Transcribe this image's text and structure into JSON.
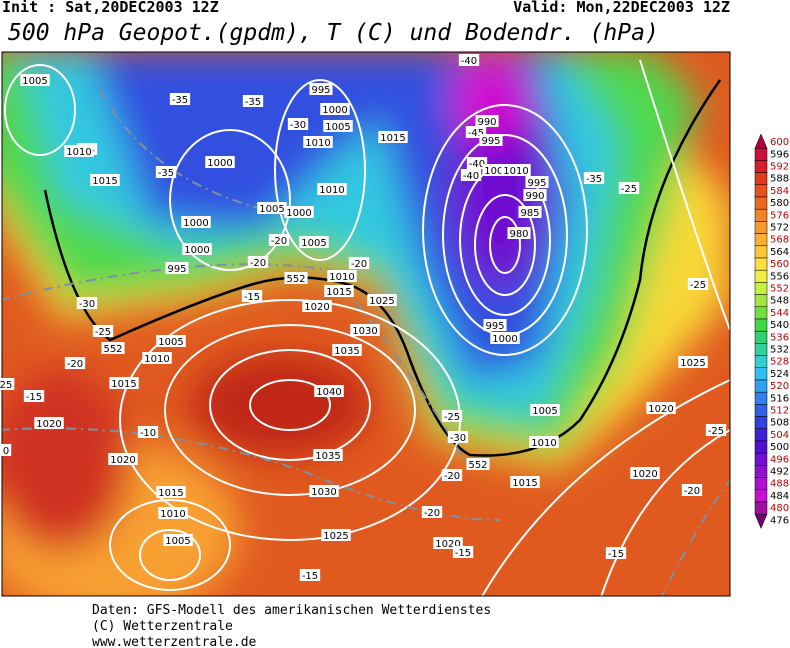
{
  "header": {
    "init": "Init : Sat,20DEC2003 12Z",
    "valid": "Valid: Mon,22DEC2003 12Z",
    "title": "500 hPa Geopot.(gpdm), T (C) und Bodendr. (hPa)"
  },
  "map_labels": [
    "1005",
    "-25",
    "1010",
    "1015",
    "1000",
    "-35",
    "-35",
    "-35",
    "995",
    "1000",
    "-30",
    "1005",
    "1010",
    "1015",
    "-40",
    "990",
    "-45",
    "995",
    "-40",
    "1000",
    "1010",
    "-40",
    "995",
    "-35",
    "-25",
    "990",
    "985",
    "980",
    "1005",
    "1000",
    "1010",
    "1000",
    "-20",
    "1005",
    "1000",
    "-20",
    "995",
    "-20",
    "1010",
    "552",
    "-15",
    "1015",
    "1025",
    "1020",
    "-30",
    "-25",
    "1030",
    "1005",
    "552",
    "1035",
    "1010",
    "-20",
    "1015",
    "-15",
    "25",
    "1040",
    "995",
    "1000",
    "-25",
    "1025",
    "1005",
    "1020",
    "-25",
    "1020",
    "-10",
    "-25",
    "-30",
    "1010",
    "1035",
    "552",
    "1020",
    "0",
    "-20",
    "1015",
    "1020",
    "-20",
    "1030",
    "1015",
    "-20",
    "1010",
    "1025",
    "1005",
    "1020",
    "-15",
    "-15",
    "-15"
  ],
  "legend": {
    "levels": [
      600,
      596,
      592,
      588,
      584,
      580,
      576,
      572,
      568,
      564,
      560,
      556,
      552,
      548,
      544,
      540,
      536,
      532,
      528,
      524,
      520,
      516,
      512,
      508,
      504,
      500,
      496,
      492,
      488,
      484,
      480,
      476
    ],
    "colors": [
      "#b0003a",
      "#c8103a",
      "#d81e2a",
      "#e33a1c",
      "#e8521a",
      "#ec6a1e",
      "#f08428",
      "#f49a30",
      "#f8b034",
      "#fcc838",
      "#fde040",
      "#f0f040",
      "#c8f040",
      "#a0e840",
      "#70e040",
      "#40d840",
      "#30d070",
      "#30d0a0",
      "#30d0d0",
      "#30c0f0",
      "#30a0f0",
      "#3080f0",
      "#3060e8",
      "#3040e0",
      "#4020d8",
      "#5010d0",
      "#7010d0",
      "#9010d0",
      "#b010d0",
      "#c810d0",
      "#a010a0",
      "#700070"
    ]
  },
  "footer": {
    "source": "Daten: GFS-Modell des amerikanischen Wetterdienstes",
    "copyright": "(C) Wetterzentrale",
    "url": "www.wetterzentrale.de"
  }
}
